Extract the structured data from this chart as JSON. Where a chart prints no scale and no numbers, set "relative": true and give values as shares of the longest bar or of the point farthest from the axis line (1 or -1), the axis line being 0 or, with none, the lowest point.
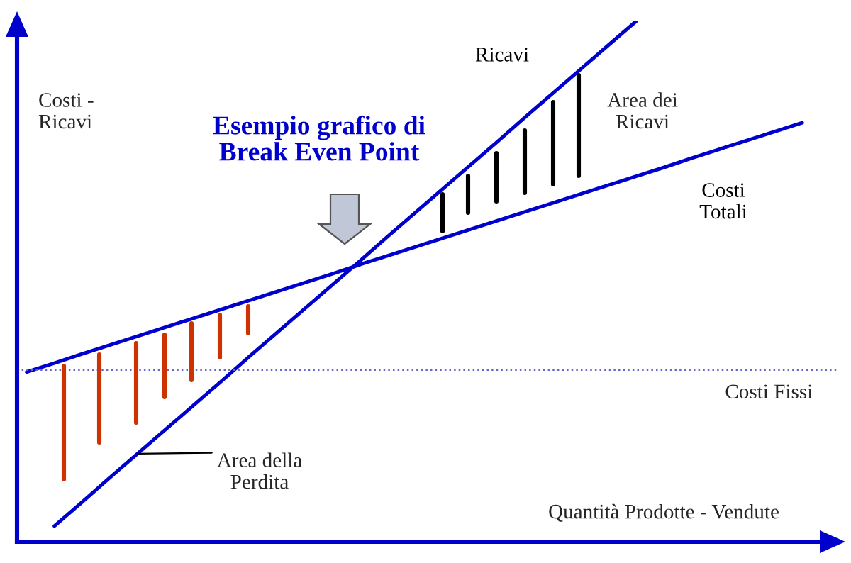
{
  "chart_data": {
    "type": "line",
    "relative": true,
    "title": "Esempio grafico di\nBreak Even Point",
    "xlabel": "Quantità Prodotte - Vendute",
    "ylabel": "Costi -\nRicavi",
    "categories": [
      null,
      null,
      null,
      null,
      null,
      null,
      null,
      null,
      null,
      null,
      null,
      null,
      null,
      null,
      null,
      null,
      null,
      null,
      null,
      null,
      null,
      null,
      null,
      null,
      null,
      null,
      null,
      null,
      null,
      null
    ],
    "series": [
      {
        "name": "Ricavi",
        "color": "#0000cc",
        "values": [
          null,
          0.03,
          0.076,
          0.123,
          0.169,
          0.215,
          0.261,
          0.307,
          0.354,
          0.4,
          0.446,
          0.492,
          0.538,
          0.585,
          0.631,
          0.677,
          0.723,
          0.769,
          0.816,
          0.862,
          0.908,
          0.954,
          1.0,
          null,
          null,
          null,
          null,
          null,
          null,
          null
        ]
      },
      {
        "name": "Costi\nTotali",
        "color": "#0000cc",
        "values": [
          0.326,
          0.343,
          0.361,
          0.378,
          0.395,
          0.412,
          0.429,
          0.446,
          0.463,
          0.48,
          0.497,
          0.514,
          0.532,
          0.549,
          0.566,
          0.583,
          0.6,
          0.617,
          0.634,
          0.651,
          0.668,
          0.685,
          0.702,
          0.719,
          0.737,
          0.754,
          0.771,
          0.788,
          0.805,
          null
        ]
      }
    ],
    "ref_lines": [
      {
        "axis": "y",
        "value": 0.33,
        "label": "Costi Fissi",
        "color": "#6666cc",
        "line_style": "dotted"
      }
    ],
    "annotations": [
      "Area dei\nRicavi",
      "Area della\nPerdita"
    ]
  }
}
